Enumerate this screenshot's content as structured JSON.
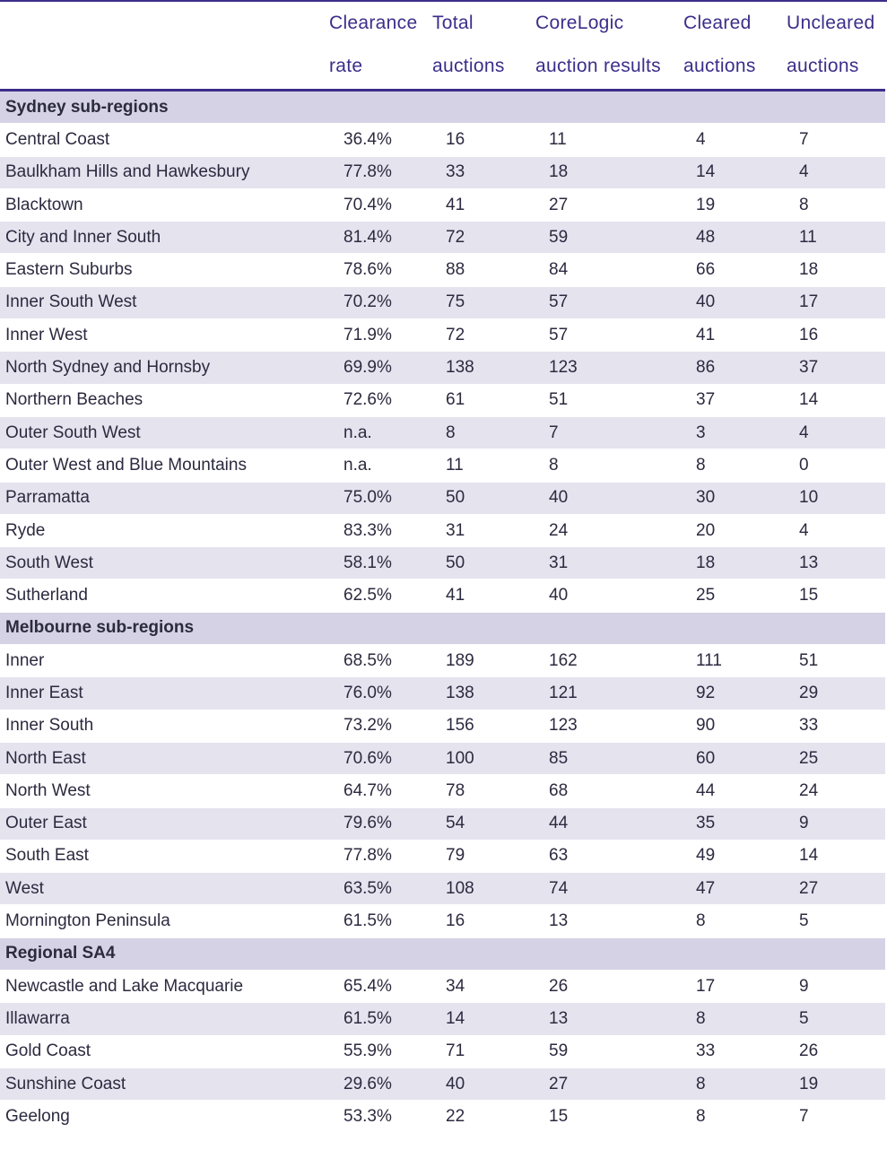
{
  "headers": [
    {
      "line1": "",
      "line2": ""
    },
    {
      "line1": "Clearance",
      "line2": "rate"
    },
    {
      "line1": "Total",
      "line2": "auctions"
    },
    {
      "line1": "CoreLogic",
      "line2": "auction results"
    },
    {
      "line1": "Cleared",
      "line2": "auctions"
    },
    {
      "line1": "Uncleared",
      "line2": "auctions"
    }
  ],
  "sections": [
    {
      "title": "Sydney sub-regions",
      "rows": [
        [
          "Central Coast",
          "36.4%",
          "16",
          "11",
          "4",
          "7"
        ],
        [
          "Baulkham Hills and Hawkesbury",
          "77.8%",
          "33",
          "18",
          "14",
          "4"
        ],
        [
          "Blacktown",
          "70.4%",
          "41",
          "27",
          "19",
          "8"
        ],
        [
          "City and Inner South",
          "81.4%",
          "72",
          "59",
          "48",
          "11"
        ],
        [
          "Eastern Suburbs",
          "78.6%",
          "88",
          "84",
          "66",
          "18"
        ],
        [
          "Inner South West",
          "70.2%",
          "75",
          "57",
          "40",
          "17"
        ],
        [
          "Inner West",
          "71.9%",
          "72",
          "57",
          "41",
          "16"
        ],
        [
          "North Sydney and Hornsby",
          "69.9%",
          "138",
          "123",
          "86",
          "37"
        ],
        [
          "Northern Beaches",
          "72.6%",
          "61",
          "51",
          "37",
          "14"
        ],
        [
          "Outer South West",
          "n.a.",
          "8",
          "7",
          "3",
          "4"
        ],
        [
          "Outer West and Blue Mountains",
          "n.a.",
          "11",
          "8",
          "8",
          "0"
        ],
        [
          "Parramatta",
          "75.0%",
          "50",
          "40",
          "30",
          "10"
        ],
        [
          "Ryde",
          "83.3%",
          "31",
          "24",
          "20",
          "4"
        ],
        [
          "South West",
          "58.1%",
          "50",
          "31",
          "18",
          "13"
        ],
        [
          "Sutherland",
          "62.5%",
          "41",
          "40",
          "25",
          "15"
        ]
      ]
    },
    {
      "title": "Melbourne sub-regions",
      "rows": [
        [
          "Inner",
          "68.5%",
          "189",
          "162",
          "111",
          "51"
        ],
        [
          "Inner East",
          "76.0%",
          "138",
          "121",
          "92",
          "29"
        ],
        [
          "Inner South",
          "73.2%",
          "156",
          "123",
          "90",
          "33"
        ],
        [
          "North East",
          "70.6%",
          "100",
          "85",
          "60",
          "25"
        ],
        [
          "North West",
          "64.7%",
          "78",
          "68",
          "44",
          "24"
        ],
        [
          "Outer East",
          "79.6%",
          "54",
          "44",
          "35",
          "9"
        ],
        [
          "South East",
          "77.8%",
          "79",
          "63",
          "49",
          "14"
        ],
        [
          "West",
          "63.5%",
          "108",
          "74",
          "47",
          "27"
        ],
        [
          "Mornington Peninsula",
          "61.5%",
          "16",
          "13",
          "8",
          "5"
        ]
      ]
    },
    {
      "title": "Regional SA4",
      "rows": [
        [
          "Newcastle and Lake Macquarie",
          "65.4%",
          "34",
          "26",
          "17",
          "9"
        ],
        [
          "Illawarra",
          "61.5%",
          "14",
          "13",
          "8",
          "5"
        ],
        [
          "Gold Coast",
          "55.9%",
          "71",
          "59",
          "33",
          "26"
        ],
        [
          "Sunshine Coast",
          "29.6%",
          "40",
          "27",
          "8",
          "19"
        ],
        [
          "Geelong",
          "53.3%",
          "22",
          "15",
          "8",
          "7"
        ]
      ]
    }
  ]
}
